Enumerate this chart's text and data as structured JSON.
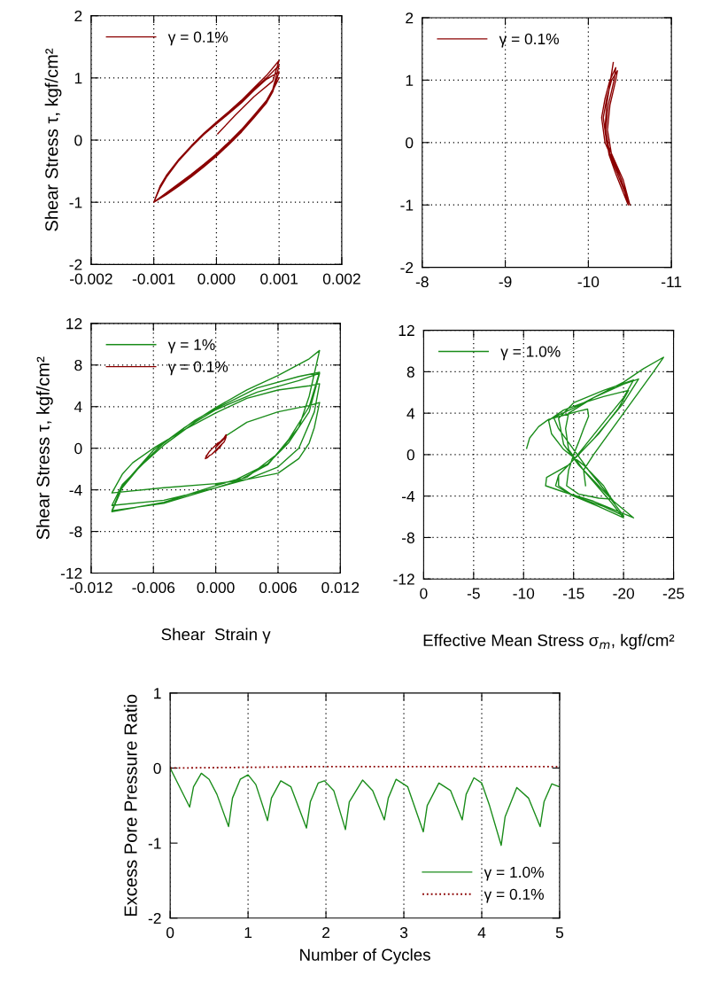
{
  "chart_data": [
    {
      "type": "line",
      "ylabel": "Shear Stress τ, kgf/cm²",
      "xlim": [
        -0.002,
        0.002
      ],
      "ylim": [
        -2,
        2
      ],
      "xticks": [
        -0.002,
        -0.001,
        {
          "value": 0,
          "label": "0.000"
        },
        0.001,
        0.002
      ],
      "yticks": [
        -2,
        -1,
        0,
        1,
        2
      ],
      "grid": true,
      "legend": "top left",
      "series": [
        {
          "name": "γ = 0.1%",
          "color": "#8b0000",
          "line_style": "solid",
          "x": [
            2e-05,
            0.0003,
            0.0006,
            0.0009,
            0.001,
            0.0008,
            0.0006,
            0.0004,
            0.0002,
            0,
            -0.0002,
            -0.0004,
            -0.0006,
            -0.0008,
            -0.0009,
            -0.001,
            -0.0008,
            -0.0006,
            -0.0004,
            -0.0002,
            0,
            0.0002,
            0.0004,
            0.0006,
            0.0008,
            0.0009,
            0.001,
            0.0008,
            0.0006,
            0.0004,
            0.0002,
            0,
            -0.0002,
            -0.0004,
            -0.0006,
            -0.0008,
            -0.0009,
            -0.001,
            -0.0008,
            -0.0006,
            -0.0004,
            -0.0002,
            0,
            0.0002,
            0.0004,
            0.0006,
            0.0008,
            0.0009,
            0.001,
            0.0008,
            0.0006,
            0.0004,
            0.0002,
            0,
            -0.0002,
            -0.0004,
            -0.0006,
            -0.0008,
            -0.0009,
            -0.001,
            -0.0008,
            -0.0006,
            -0.0004,
            -0.0002,
            0,
            0.0002,
            0.0004,
            0.0006,
            0.0008,
            0.0009,
            0.001
          ],
          "values": [
            0.1,
            0.4,
            0.7,
            0.95,
            1.28,
            1.04,
            0.84,
            0.64,
            0.46,
            0.29,
            0.11,
            -0.09,
            -0.31,
            -0.57,
            -0.74,
            -1.0,
            -0.88,
            -0.74,
            -0.59,
            -0.43,
            -0.26,
            -0.07,
            0.13,
            0.36,
            0.6,
            0.78,
            1.1,
            0.98,
            0.8,
            0.6,
            0.43,
            0.26,
            0.09,
            -0.11,
            -0.33,
            -0.6,
            -0.77,
            -1.0,
            -0.85,
            -0.7,
            -0.55,
            -0.39,
            -0.22,
            -0.03,
            0.17,
            0.4,
            0.64,
            0.82,
            1.2,
            1.0,
            0.82,
            0.62,
            0.45,
            0.28,
            0.1,
            -0.1,
            -0.32,
            -0.58,
            -0.75,
            -1.0,
            -0.86,
            -0.72,
            -0.57,
            -0.41,
            -0.24,
            -0.05,
            0.15,
            0.38,
            0.62,
            0.8,
            1.0
          ]
        }
      ]
    },
    {
      "type": "line",
      "xlim": [
        -8,
        -11
      ],
      "ylim": [
        -2,
        2
      ],
      "xticks": [
        -8,
        -9,
        -10,
        -11
      ],
      "yticks": [
        -2,
        -1,
        0,
        1,
        2
      ],
      "grid": true,
      "legend": "top left",
      "series": [
        {
          "name": "γ = 0.1%",
          "color": "#8b0000",
          "line_style": "solid",
          "x": [
            -10.3,
            -10.22,
            -10.2,
            -10.25,
            -10.33,
            -10.42,
            -10.48,
            -10.4,
            -10.3,
            -10.2,
            -10.16,
            -10.2,
            -10.26,
            -10.33,
            -10.31,
            -10.24,
            -10.21,
            -10.26,
            -10.35,
            -10.44,
            -10.5,
            -10.42,
            -10.32,
            -10.22,
            -10.18,
            -10.22,
            -10.28,
            -10.35,
            -10.33,
            -10.26,
            -10.23,
            -10.28,
            -10.37,
            -10.45,
            -10.5
          ],
          "values": [
            1.28,
            0.6,
            0.2,
            -0.2,
            -0.5,
            -0.8,
            -1.0,
            -0.6,
            -0.3,
            0,
            0.4,
            0.7,
            1.0,
            1.2,
            1.0,
            0.6,
            0.2,
            -0.2,
            -0.5,
            -0.8,
            -1.0,
            -0.6,
            -0.3,
            0,
            0.4,
            0.7,
            1.0,
            1.15,
            1.0,
            0.6,
            0.2,
            -0.2,
            -0.5,
            -0.8,
            -1.0
          ]
        }
      ]
    },
    {
      "type": "line",
      "ylabel": "Shear Stress τ, kgf/cm²",
      "xlabel": "Shear  Strain γ",
      "xlim": [
        -0.012,
        0.012
      ],
      "ylim": [
        -12,
        12
      ],
      "xticks": [
        -0.012,
        -0.006,
        {
          "value": 0,
          "label": "0.000"
        },
        0.006,
        0.012
      ],
      "yticks": [
        -12,
        -8,
        -4,
        0,
        4,
        8,
        12
      ],
      "grid": true,
      "legend": "top left",
      "series": [
        {
          "name": "γ = 1%",
          "color": "#1a8c1a",
          "line_style": "solid",
          "x": [
            0.001,
            0.003,
            0.006,
            0.008,
            0.009,
            0.01,
            0.0095,
            0.009,
            0.008,
            0.006,
            0.003,
            0,
            -0.005,
            -0.01,
            -0.009,
            -0.008,
            -0.006,
            -0.003,
            0,
            0.003,
            0.006,
            0.009,
            0.01,
            0.0095,
            0.008,
            0.006,
            0.003,
            0,
            -0.005,
            -0.01,
            -0.009,
            -0.007,
            -0.005,
            -0.002,
            0,
            0.004,
            0.008,
            0.01,
            0.009,
            0.007,
            0.005,
            0.002,
            0,
            -0.005,
            -0.01,
            -0.009,
            -0.007,
            -0.005,
            -0.002,
            0,
            0.004,
            0.008,
            0.01,
            0.009,
            0.007,
            0.005,
            0.002,
            0,
            -0.005,
            -0.01,
            -0.009,
            -0.006,
            -0.003,
            0,
            0.003,
            0.006,
            0.009,
            0.01,
            0.009,
            0.008,
            0.006,
            0.003,
            0
          ],
          "values": [
            1.2,
            2.5,
            3.5,
            3.9,
            4.1,
            4.4,
            2.0,
            0.5,
            -1.0,
            -2.4,
            -3.0,
            -3.4,
            -3.8,
            -4.3,
            -2.5,
            -1.4,
            0,
            1.8,
            3.4,
            4.8,
            5.6,
            6.0,
            6.2,
            3.5,
            0,
            -1.8,
            -3.0,
            -3.8,
            -5.0,
            -5.5,
            -3.5,
            -1.5,
            0.3,
            2.5,
            3.7,
            5.4,
            6.5,
            7.2,
            3.5,
            0.5,
            -1.5,
            -3.0,
            -3.6,
            -5.2,
            -6.1,
            -3.8,
            -1.4,
            0.5,
            2.7,
            3.8,
            5.8,
            6.9,
            7.3,
            4.0,
            0.8,
            -1.6,
            -3.2,
            -3.8,
            -5.3,
            -6.0,
            -3.6,
            -0.2,
            2.0,
            3.9,
            5.6,
            7.0,
            8.6,
            9.4,
            5.0,
            2.0,
            -0.5,
            -2.8,
            -3.5
          ]
        },
        {
          "name": "γ = 0.1%",
          "color": "#8b0000",
          "line_style": "solid",
          "x": [
            2e-05,
            0.0003,
            0.0006,
            0.0009,
            0.001,
            0.0008,
            0.0006,
            0.0004,
            0.0002,
            0,
            -0.0002,
            -0.0004,
            -0.0006,
            -0.0008,
            -0.0009,
            -0.001,
            -0.0008,
            -0.0006,
            -0.0004,
            -0.0002,
            0,
            0.0002,
            0.0004,
            0.0006,
            0.0008,
            0.0009,
            0.001,
            0.0008,
            0.0006,
            0.0004,
            0.0002,
            0,
            -0.0002,
            -0.0004,
            -0.0006,
            -0.0008,
            -0.0009,
            -0.001,
            -0.0008,
            -0.0006,
            -0.0004,
            -0.0002,
            0,
            0.0002,
            0.0004,
            0.0006,
            0.0008,
            0.0009,
            0.001
          ],
          "values": [
            0.1,
            0.4,
            0.7,
            1.0,
            1.3,
            1.0,
            0.8,
            0.6,
            0.5,
            0.3,
            0.1,
            -0.1,
            -0.3,
            -0.6,
            -0.7,
            -1.0,
            -0.9,
            -0.7,
            -0.6,
            -0.4,
            -0.3,
            -0.1,
            0.1,
            0.4,
            0.6,
            0.8,
            1.1,
            1.0,
            0.8,
            0.6,
            0.4,
            0.3,
            0.1,
            -0.1,
            -0.3,
            -0.6,
            -0.8,
            -1.0,
            -0.9,
            -0.7,
            -0.6,
            -0.4,
            -0.2,
            0,
            0.2,
            0.4,
            0.6,
            0.8,
            1.2
          ]
        }
      ]
    },
    {
      "type": "line",
      "xlabel": "Effective Mean Stress σ$_{m}$, kgf/cm²",
      "xlim": [
        0,
        -25
      ],
      "ylim": [
        -12,
        12
      ],
      "xticks": [
        0,
        -5,
        -10,
        -15,
        -20,
        -25
      ],
      "yticks": [
        -12,
        -8,
        -4,
        0,
        4,
        8,
        12
      ],
      "grid": true,
      "legend": "top left",
      "series": [
        {
          "name": "γ = 1.0%",
          "color": "#1a8c1a",
          "line_style": "solid",
          "x": [
            -10.3,
            -10.6,
            -11.5,
            -12.5,
            -14,
            -15.5,
            -16.4,
            -16.5,
            -16,
            -15.5,
            -15,
            -14.5,
            -14.3,
            -15.5,
            -17.5,
            -18.8,
            -18,
            -16,
            -14,
            -12.8,
            -12.5,
            -14,
            -16,
            -18,
            -20.5,
            -19.5,
            -17.5,
            -15,
            -13.5,
            -13.5,
            -15,
            -18,
            -20,
            -18.5,
            -15.5,
            -14,
            -13.5,
            -15,
            -18,
            -21,
            -20,
            -17.5,
            -15,
            -13.5,
            -13.2,
            -14.8,
            -17.5,
            -20,
            -18.5,
            -16,
            -14.5,
            -14.2,
            -14.5,
            -17,
            -20,
            -21.5,
            -20,
            -17,
            -14.5,
            -12.3,
            -12.2,
            -14,
            -17,
            -21,
            -19,
            -16.5,
            -15,
            -13.5,
            -13,
            -15,
            -17,
            -20,
            -22,
            -24,
            -23,
            -20,
            -17,
            -16,
            -16.2
          ],
          "values": [
            0.6,
            1.6,
            2.7,
            3.4,
            3.8,
            4.2,
            4.4,
            3.7,
            2.5,
            1.2,
            0,
            -1.5,
            -3.0,
            -3.8,
            -4.2,
            -4.3,
            -3.0,
            -1.0,
            0.5,
            2.0,
            3.3,
            4.3,
            5.0,
            5.6,
            6.2,
            4.5,
            2.0,
            -0.5,
            -2.0,
            -3.0,
            -4.0,
            -5.0,
            -5.9,
            -4.0,
            -1.0,
            1.0,
            3.5,
            5.0,
            6.2,
            7.2,
            5.5,
            2.5,
            -0.5,
            -2.0,
            -3.0,
            -3.9,
            -5.0,
            -6.1,
            -4.3,
            -1.5,
            0.5,
            2.5,
            4.0,
            5.5,
            6.8,
            7.3,
            5.0,
            1.5,
            -1.0,
            -2.2,
            -3.0,
            -3.6,
            -4.5,
            -6.1,
            -4.5,
            -1.5,
            0.5,
            2.5,
            3.6,
            4.5,
            5.5,
            7.0,
            8.3,
            9.4,
            8.0,
            4.0,
            0,
            -1.5,
            -3.0
          ]
        }
      ]
    },
    {
      "type": "line",
      "xlabel": "Number of Cycles",
      "ylabel": "Excess Pore Pressure Ratio",
      "xlim": [
        0,
        5
      ],
      "ylim": [
        -2,
        1
      ],
      "xticks": [
        0,
        1,
        2,
        3,
        4,
        5
      ],
      "yticks": [
        -2,
        -1,
        0,
        1
      ],
      "grid": "x",
      "legend": "bottom right",
      "series": [
        {
          "name": "γ = 1.0%",
          "color": "#1a8c1a",
          "line_style": "solid",
          "x": [
            0,
            0.25,
            0.3,
            0.4,
            0.5,
            0.6,
            0.75,
            0.8,
            0.9,
            1.0,
            1.1,
            1.25,
            1.3,
            1.42,
            1.55,
            1.75,
            1.8,
            1.9,
            1.98,
            2.1,
            2.25,
            2.3,
            2.47,
            2.6,
            2.75,
            2.8,
            2.9,
            3.05,
            3.25,
            3.3,
            3.45,
            3.6,
            3.75,
            3.8,
            3.9,
            4.0,
            4.1,
            4.25,
            4.3,
            4.45,
            4.6,
            4.75,
            4.8,
            4.9,
            5.0
          ],
          "values": [
            0,
            -0.52,
            -0.25,
            -0.07,
            -0.15,
            -0.35,
            -0.78,
            -0.4,
            -0.15,
            -0.09,
            -0.22,
            -0.7,
            -0.4,
            -0.17,
            -0.25,
            -0.8,
            -0.45,
            -0.2,
            -0.17,
            -0.3,
            -0.82,
            -0.45,
            -0.16,
            -0.3,
            -0.69,
            -0.4,
            -0.15,
            -0.25,
            -0.85,
            -0.5,
            -0.2,
            -0.3,
            -0.69,
            -0.35,
            -0.13,
            -0.2,
            -0.5,
            -1.03,
            -0.65,
            -0.26,
            -0.4,
            -0.78,
            -0.45,
            -0.21,
            -0.25
          ]
        },
        {
          "name": "γ = 0.1%",
          "color": "#8b0000",
          "line_style": "dotted",
          "x": [
            0,
            1,
            2,
            3,
            4,
            5
          ],
          "values": [
            0,
            0.01,
            0.02,
            0.02,
            0.02,
            0.02
          ]
        }
      ]
    }
  ]
}
